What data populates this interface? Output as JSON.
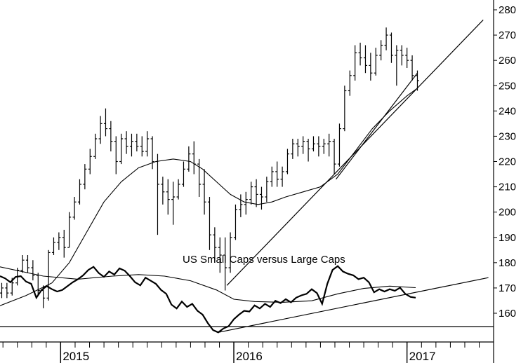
{
  "chart_data": [
    {
      "type": "ohlc",
      "name": "price-panel",
      "title": "",
      "ylim": [
        150,
        282
      ],
      "y_ticks": [
        160,
        170,
        180,
        190,
        200,
        210,
        220,
        230,
        240,
        250,
        260,
        270,
        280
      ],
      "x_range": [
        2014.65,
        2017.5
      ],
      "x_labels": [
        "2015",
        "2016",
        "2017"
      ],
      "x_label_positions": [
        2015.0,
        2016.0,
        2017.0
      ],
      "bars": [
        [
          2014.66,
          168,
          172,
          166,
          170
        ],
        [
          2014.69,
          170,
          172,
          166,
          168
        ],
        [
          2014.72,
          168,
          174,
          167,
          172
        ],
        [
          2014.75,
          172,
          178,
          171,
          177
        ],
        [
          2014.78,
          177,
          183,
          176,
          181
        ],
        [
          2014.81,
          181,
          183,
          176,
          178
        ],
        [
          2014.84,
          178,
          181,
          173,
          175
        ],
        [
          2014.87,
          175,
          176,
          167,
          169
        ],
        [
          2014.9,
          169,
          171,
          162,
          166
        ],
        [
          2014.93,
          166,
          185,
          165,
          184
        ],
        [
          2014.96,
          184,
          190,
          183,
          188
        ],
        [
          2014.99,
          188,
          192,
          185,
          190
        ],
        [
          2015.02,
          190,
          193,
          182,
          186
        ],
        [
          2015.05,
          186,
          200,
          186,
          198
        ],
        [
          2015.08,
          198,
          206,
          197,
          204
        ],
        [
          2015.11,
          204,
          213,
          203,
          211
        ],
        [
          2015.14,
          211,
          219,
          209,
          217
        ],
        [
          2015.17,
          217,
          225,
          215,
          222
        ],
        [
          2015.2,
          222,
          231,
          221,
          229
        ],
        [
          2015.23,
          229,
          238,
          227,
          235
        ],
        [
          2015.26,
          235,
          241,
          230,
          233
        ],
        [
          2015.29,
          233,
          236,
          224,
          228
        ],
        [
          2015.32,
          228,
          230,
          215,
          220
        ],
        [
          2015.35,
          220,
          231,
          219,
          229
        ],
        [
          2015.38,
          229,
          232,
          223,
          226
        ],
        [
          2015.41,
          226,
          231,
          222,
          228
        ],
        [
          2015.44,
          228,
          231,
          224,
          226
        ],
        [
          2015.47,
          226,
          230,
          222,
          224
        ],
        [
          2015.5,
          224,
          232,
          222,
          229
        ],
        [
          2015.53,
          229,
          230,
          217,
          220
        ],
        [
          2015.56,
          220,
          223,
          191,
          211
        ],
        [
          2015.59,
          211,
          214,
          203,
          208
        ],
        [
          2015.62,
          208,
          213,
          199,
          205
        ],
        [
          2015.65,
          205,
          212,
          195,
          206
        ],
        [
          2015.68,
          206,
          213,
          205,
          211
        ],
        [
          2015.71,
          211,
          220,
          210,
          217
        ],
        [
          2015.74,
          217,
          226,
          216,
          223
        ],
        [
          2015.77,
          223,
          228,
          215,
          219
        ],
        [
          2015.8,
          219,
          221,
          206,
          211
        ],
        [
          2015.83,
          211,
          217,
          199,
          204
        ],
        [
          2015.86,
          204,
          206,
          185,
          191
        ],
        [
          2015.89,
          191,
          194,
          180,
          186
        ],
        [
          2015.92,
          186,
          190,
          176,
          183
        ],
        [
          2015.95,
          183,
          190,
          169,
          178
        ],
        [
          2015.98,
          178,
          192,
          176,
          190
        ],
        [
          2016.01,
          190,
          203,
          189,
          201
        ],
        [
          2016.04,
          201,
          207,
          198,
          203
        ],
        [
          2016.07,
          203,
          208,
          199,
          205
        ],
        [
          2016.1,
          205,
          212,
          203,
          210
        ],
        [
          2016.13,
          210,
          213,
          202,
          207
        ],
        [
          2016.16,
          207,
          210,
          201,
          206
        ],
        [
          2016.19,
          206,
          214,
          204,
          212
        ],
        [
          2016.22,
          212,
          218,
          210,
          216
        ],
        [
          2016.25,
          216,
          220,
          210,
          213
        ],
        [
          2016.28,
          213,
          218,
          210,
          216
        ],
        [
          2016.31,
          216,
          225,
          215,
          223
        ],
        [
          2016.34,
          223,
          229,
          221,
          227
        ],
        [
          2016.37,
          227,
          229,
          222,
          226
        ],
        [
          2016.4,
          226,
          230,
          223,
          228
        ],
        [
          2016.43,
          228,
          229,
          220,
          225
        ],
        [
          2016.46,
          225,
          230,
          224,
          227
        ],
        [
          2016.49,
          227,
          230,
          222,
          226
        ],
        [
          2016.52,
          226,
          229,
          223,
          227
        ],
        [
          2016.55,
          227,
          231,
          222,
          228
        ],
        [
          2016.58,
          228,
          229,
          215,
          219
        ],
        [
          2016.61,
          219,
          235,
          218,
          233
        ],
        [
          2016.64,
          233,
          250,
          232,
          248
        ],
        [
          2016.67,
          248,
          256,
          246,
          254
        ],
        [
          2016.7,
          254,
          266,
          252,
          263
        ],
        [
          2016.73,
          263,
          267,
          258,
          261
        ],
        [
          2016.76,
          261,
          266,
          255,
          258
        ],
        [
          2016.79,
          258,
          263,
          252,
          255
        ],
        [
          2016.82,
          255,
          265,
          254,
          262
        ],
        [
          2016.85,
          262,
          268,
          260,
          266
        ],
        [
          2016.88,
          266,
          273,
          264,
          270
        ],
        [
          2016.91,
          270,
          271,
          259,
          262
        ],
        [
          2016.94,
          262,
          266,
          250,
          264
        ],
        [
          2016.97,
          264,
          266,
          258,
          262
        ],
        [
          2017.0,
          262,
          265,
          257,
          260
        ],
        [
          2017.03,
          260,
          262,
          252,
          254
        ],
        [
          2017.06,
          254,
          256,
          248,
          252
        ]
      ],
      "moving_average": [
        [
          2014.65,
          163
        ],
        [
          2014.8,
          167
        ],
        [
          2014.95,
          172
        ],
        [
          2015.05,
          180
        ],
        [
          2015.15,
          192
        ],
        [
          2015.25,
          204
        ],
        [
          2015.35,
          212
        ],
        [
          2015.45,
          217.5
        ],
        [
          2015.55,
          220
        ],
        [
          2015.65,
          221
        ],
        [
          2015.75,
          220
        ],
        [
          2015.82,
          217
        ],
        [
          2015.9,
          212
        ],
        [
          2015.98,
          207
        ],
        [
          2016.06,
          204
        ],
        [
          2016.14,
          203
        ],
        [
          2016.22,
          204
        ],
        [
          2016.3,
          206
        ],
        [
          2016.4,
          208
        ],
        [
          2016.5,
          210
        ],
        [
          2016.6,
          215
        ],
        [
          2016.7,
          224
        ],
        [
          2016.8,
          233
        ],
        [
          2016.9,
          240
        ],
        [
          2017.0,
          246
        ],
        [
          2017.06,
          249
        ]
      ],
      "trendlines": [
        [
          [
            2015.96,
            171
          ],
          [
            2017.44,
            276
          ]
        ],
        [
          [
            2016.59,
            213
          ],
          [
            2017.06,
            255
          ]
        ]
      ]
    },
    {
      "type": "line",
      "name": "relative-strength-panel",
      "title": "US Small Caps versus Large Caps",
      "ylim": [
        0,
        100
      ],
      "x_range": [
        2014.65,
        2017.5
      ],
      "series": [
        {
          "values": [
            [
              2014.65,
              80
            ],
            [
              2014.68,
              77
            ],
            [
              2014.71,
              72
            ],
            [
              2014.74,
              79
            ],
            [
              2014.77,
              80
            ],
            [
              2014.8,
              73
            ],
            [
              2014.83,
              70
            ],
            [
              2014.86,
              52
            ],
            [
              2014.89,
              62
            ],
            [
              2014.92,
              67
            ],
            [
              2014.95,
              63
            ],
            [
              2014.98,
              60
            ],
            [
              2015.01,
              62
            ],
            [
              2015.04,
              67
            ],
            [
              2015.07,
              72
            ],
            [
              2015.1,
              76
            ],
            [
              2015.13,
              81
            ],
            [
              2015.16,
              88
            ],
            [
              2015.19,
              92
            ],
            [
              2015.22,
              84
            ],
            [
              2015.25,
              79
            ],
            [
              2015.28,
              86
            ],
            [
              2015.31,
              82
            ],
            [
              2015.34,
              90
            ],
            [
              2015.37,
              87
            ],
            [
              2015.4,
              80
            ],
            [
              2015.43,
              72
            ],
            [
              2015.46,
              68
            ],
            [
              2015.49,
              78
            ],
            [
              2015.52,
              74
            ],
            [
              2015.55,
              70
            ],
            [
              2015.58,
              62
            ],
            [
              2015.61,
              57
            ],
            [
              2015.64,
              43
            ],
            [
              2015.67,
              38
            ],
            [
              2015.7,
              47
            ],
            [
              2015.73,
              40
            ],
            [
              2015.76,
              44
            ],
            [
              2015.79,
              35
            ],
            [
              2015.82,
              30
            ],
            [
              2015.85,
              19
            ],
            [
              2015.88,
              10
            ],
            [
              2015.91,
              7
            ],
            [
              2015.94,
              12
            ],
            [
              2015.97,
              15
            ],
            [
              2016.0,
              24
            ],
            [
              2016.03,
              30
            ],
            [
              2016.06,
              35
            ],
            [
              2016.09,
              34
            ],
            [
              2016.12,
              42
            ],
            [
              2016.15,
              38
            ],
            [
              2016.18,
              44
            ],
            [
              2016.21,
              40
            ],
            [
              2016.24,
              48
            ],
            [
              2016.27,
              45
            ],
            [
              2016.3,
              50
            ],
            [
              2016.33,
              46
            ],
            [
              2016.36,
              52
            ],
            [
              2016.39,
              55
            ],
            [
              2016.42,
              57
            ],
            [
              2016.45,
              63
            ],
            [
              2016.48,
              58
            ],
            [
              2016.51,
              44
            ],
            [
              2016.54,
              70
            ],
            [
              2016.57,
              88
            ],
            [
              2016.6,
              93
            ],
            [
              2016.63,
              86
            ],
            [
              2016.66,
              83
            ],
            [
              2016.69,
              81
            ],
            [
              2016.72,
              76
            ],
            [
              2016.75,
              78
            ],
            [
              2016.78,
              72
            ],
            [
              2016.81,
              59
            ],
            [
              2016.84,
              63
            ],
            [
              2016.87,
              60
            ],
            [
              2016.9,
              63
            ],
            [
              2016.93,
              61
            ],
            [
              2016.96,
              65
            ],
            [
              2016.99,
              57
            ],
            [
              2017.02,
              53
            ],
            [
              2017.05,
              52
            ]
          ]
        },
        {
          "values": [
            [
              2014.65,
              92
            ],
            [
              2014.9,
              80
            ],
            [
              2015.1,
              76
            ],
            [
              2015.3,
              80
            ],
            [
              2015.45,
              82
            ],
            [
              2015.6,
              80
            ],
            [
              2015.75,
              74
            ],
            [
              2015.9,
              62
            ],
            [
              2016.0,
              50
            ],
            [
              2016.12,
              47
            ],
            [
              2016.28,
              46
            ],
            [
              2016.45,
              48
            ],
            [
              2016.6,
              57
            ],
            [
              2016.75,
              64
            ],
            [
              2016.9,
              67
            ],
            [
              2017.05,
              65
            ]
          ]
        }
      ],
      "trendlines": [
        [
          [
            2015.91,
            7
          ],
          [
            2017.47,
            78
          ]
        ]
      ]
    }
  ]
}
